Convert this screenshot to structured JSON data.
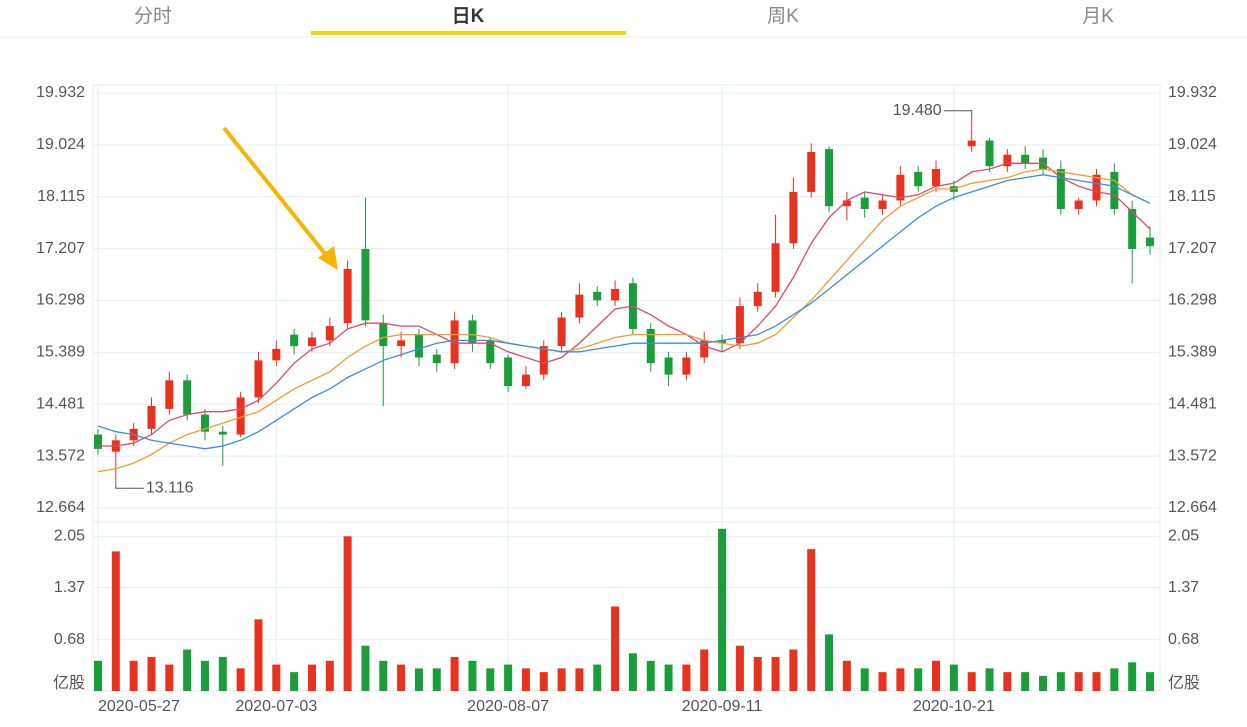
{
  "tabs": [
    "分时",
    "日K",
    "周K",
    "月K"
  ],
  "chart_data": {
    "type": "candlestick",
    "categories": [
      "2020-05-27",
      null,
      null,
      null,
      null,
      null,
      null,
      null,
      null,
      null,
      "2020-07-03",
      null,
      null,
      null,
      null,
      null,
      null,
      null,
      null,
      null,
      null,
      null,
      null,
      "2020-08-07",
      null,
      null,
      null,
      null,
      null,
      null,
      null,
      null,
      null,
      null,
      null,
      "2020-09-11",
      null,
      null,
      null,
      null,
      null,
      null,
      null,
      null,
      null,
      null,
      null,
      null,
      "2020-10-21",
      null,
      null,
      null,
      null,
      null,
      null,
      null,
      null,
      null,
      null,
      null
    ],
    "open": [
      13.95,
      13.65,
      13.85,
      14.05,
      14.4,
      14.9,
      14.3,
      14.0,
      13.95,
      14.6,
      15.25,
      15.7,
      15.5,
      15.6,
      15.9,
      17.2,
      15.9,
      15.5,
      15.7,
      15.35,
      15.2,
      15.95,
      15.6,
      15.3,
      14.8,
      15.0,
      15.5,
      16.0,
      16.45,
      16.3,
      16.6,
      15.8,
      15.3,
      15.0,
      15.3,
      15.6,
      15.55,
      16.2,
      16.45,
      17.3,
      18.2,
      18.95,
      17.95,
      18.1,
      17.9,
      18.05,
      18.55,
      18.3,
      18.3,
      19.0,
      19.1,
      18.65,
      18.85,
      18.8,
      18.6,
      17.9,
      18.05,
      18.55,
      17.9,
      17.4
    ],
    "high": [
      14.05,
      13.95,
      14.15,
      14.6,
      15.05,
      15.0,
      14.4,
      14.1,
      14.7,
      15.4,
      15.6,
      15.8,
      15.75,
      16.0,
      17.0,
      18.1,
      16.05,
      15.75,
      15.8,
      15.45,
      16.1,
      16.05,
      15.65,
      15.35,
      15.15,
      15.6,
      16.1,
      16.6,
      16.55,
      16.65,
      16.7,
      15.9,
      15.4,
      15.4,
      15.75,
      15.7,
      16.35,
      16.6,
      17.8,
      18.45,
      19.05,
      19.0,
      18.2,
      18.2,
      18.15,
      18.65,
      18.65,
      18.75,
      18.4,
      19.48,
      19.15,
      18.95,
      19.0,
      18.95,
      18.75,
      18.1,
      18.6,
      18.7,
      18.05,
      17.6
    ],
    "low": [
      13.6,
      13.116,
      13.75,
      13.95,
      14.3,
      14.2,
      13.85,
      13.4,
      13.9,
      14.5,
      15.15,
      15.35,
      15.4,
      15.5,
      15.8,
      15.85,
      14.45,
      15.3,
      15.15,
      15.05,
      15.1,
      15.4,
      15.1,
      14.7,
      14.75,
      14.9,
      15.4,
      15.9,
      16.2,
      16.2,
      15.7,
      15.05,
      14.8,
      14.9,
      15.2,
      15.4,
      15.45,
      16.1,
      16.35,
      17.2,
      18.1,
      17.85,
      17.7,
      17.75,
      17.8,
      17.95,
      18.2,
      18.2,
      18.05,
      18.9,
      18.55,
      18.55,
      18.6,
      18.5,
      17.8,
      17.8,
      17.95,
      17.8,
      16.6,
      17.1
    ],
    "close": [
      13.7,
      13.85,
      14.05,
      14.45,
      14.9,
      14.3,
      14.0,
      13.95,
      14.6,
      15.25,
      15.45,
      15.5,
      15.65,
      15.85,
      16.85,
      15.95,
      15.5,
      15.6,
      15.3,
      15.2,
      15.95,
      15.55,
      15.2,
      14.8,
      15.0,
      15.5,
      16.0,
      16.4,
      16.3,
      16.5,
      15.8,
      15.2,
      15.0,
      15.3,
      15.6,
      15.55,
      16.2,
      16.45,
      17.3,
      18.2,
      18.9,
      17.95,
      18.05,
      17.9,
      18.05,
      18.5,
      18.3,
      18.6,
      18.2,
      19.1,
      18.65,
      18.85,
      18.7,
      18.6,
      17.9,
      18.05,
      18.5,
      17.9,
      17.2,
      17.25
    ],
    "ma_series": [
      {
        "color": "#e0476a",
        "values": [
          13.75,
          13.75,
          13.8,
          13.95,
          14.2,
          14.3,
          14.35,
          14.35,
          14.4,
          14.55,
          14.85,
          15.2,
          15.45,
          15.55,
          15.8,
          15.9,
          15.9,
          15.85,
          15.85,
          15.7,
          15.55,
          15.55,
          15.55,
          15.4,
          15.3,
          15.2,
          15.3,
          15.55,
          15.85,
          16.15,
          16.2,
          16.05,
          15.85,
          15.7,
          15.5,
          15.4,
          15.55,
          15.85,
          16.2,
          16.7,
          17.3,
          17.75,
          18.05,
          18.2,
          18.15,
          18.1,
          18.15,
          18.3,
          18.35,
          18.55,
          18.6,
          18.7,
          18.7,
          18.7,
          18.45,
          18.3,
          18.2,
          18.15,
          17.85,
          17.55
        ]
      },
      {
        "color": "#f39c2c",
        "values": [
          13.3,
          13.35,
          13.45,
          13.6,
          13.8,
          13.95,
          14.05,
          14.15,
          14.25,
          14.35,
          14.55,
          14.75,
          14.9,
          15.05,
          15.3,
          15.5,
          15.65,
          15.7,
          15.7,
          15.7,
          15.7,
          15.7,
          15.65,
          15.55,
          15.5,
          15.45,
          15.4,
          15.45,
          15.55,
          15.65,
          15.7,
          15.7,
          15.7,
          15.7,
          15.6,
          15.55,
          15.5,
          15.55,
          15.7,
          16.0,
          16.3,
          16.65,
          17.0,
          17.35,
          17.7,
          17.95,
          18.1,
          18.25,
          18.25,
          18.35,
          18.4,
          18.45,
          18.55,
          18.6,
          18.55,
          18.5,
          18.45,
          18.4,
          18.15,
          18.0
        ]
      },
      {
        "color": "#3a8fd9",
        "values": [
          14.1,
          14.0,
          13.95,
          13.85,
          13.8,
          13.75,
          13.7,
          13.75,
          13.85,
          14.0,
          14.2,
          14.4,
          14.6,
          14.75,
          14.95,
          15.1,
          15.25,
          15.35,
          15.45,
          15.55,
          15.6,
          15.6,
          15.6,
          15.55,
          15.5,
          15.45,
          15.4,
          15.4,
          15.45,
          15.5,
          15.55,
          15.55,
          15.55,
          15.55,
          15.55,
          15.6,
          15.65,
          15.7,
          15.85,
          16.05,
          16.25,
          16.5,
          16.75,
          17.0,
          17.25,
          17.5,
          17.75,
          17.95,
          18.1,
          18.2,
          18.3,
          18.4,
          18.45,
          18.5,
          18.45,
          18.4,
          18.35,
          18.3,
          18.15,
          18.0
        ]
      }
    ],
    "ylim": [
      12.664,
      19.932
    ],
    "yticks": [
      12.664,
      13.572,
      14.481,
      15.389,
      16.298,
      17.207,
      18.115,
      19.024,
      19.932
    ],
    "high_label": "19.480",
    "low_label": "13.116",
    "up_color": "#e8321e",
    "down_color": "#1a9e3a",
    "volume": [
      0.4,
      1.85,
      0.4,
      0.45,
      0.35,
      0.55,
      0.4,
      0.45,
      0.3,
      0.95,
      0.35,
      0.25,
      0.35,
      0.4,
      2.05,
      0.6,
      0.4,
      0.35,
      0.3,
      0.3,
      0.45,
      0.4,
      0.3,
      0.35,
      0.3,
      0.25,
      0.3,
      0.3,
      0.35,
      1.12,
      0.5,
      0.4,
      0.35,
      0.35,
      0.55,
      2.15,
      0.6,
      0.45,
      0.45,
      0.55,
      1.88,
      0.75,
      0.4,
      0.3,
      0.25,
      0.3,
      0.3,
      0.4,
      0.35,
      0.25,
      0.3,
      0.25,
      0.25,
      0.2,
      0.25,
      0.25,
      0.25,
      0.3,
      0.38,
      0.25
    ],
    "vlim": [
      0,
      2.2
    ],
    "vticks": [
      0.68,
      1.37,
      2.05
    ],
    "volume_unit": "亿股"
  }
}
